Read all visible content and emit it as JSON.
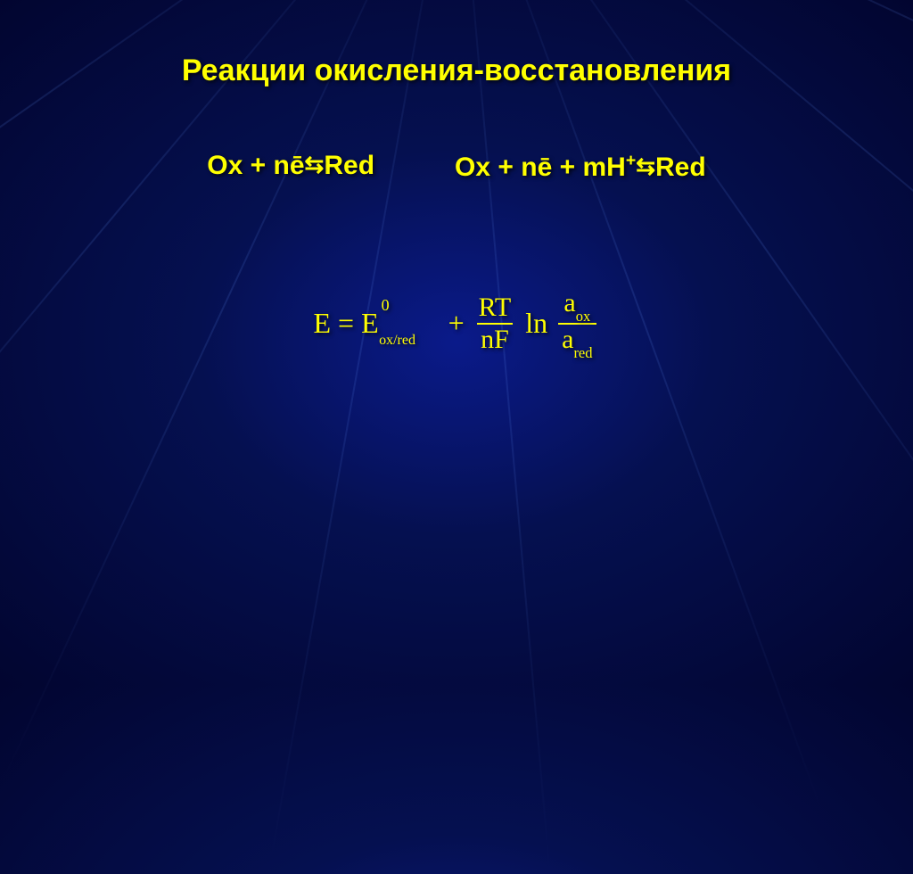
{
  "slide": {
    "title": "Реакции окисления-восстановления",
    "eq1": {
      "lhs_ox": "Ox",
      "plus1": " + ",
      "ne": "nē",
      "arrows": " ⇆ ",
      "rhs": "Red"
    },
    "eq2": {
      "lhs_ox": "Ox",
      "plus1": " + ",
      "ne": "nē",
      "plus2": " + ",
      "mh": "mH",
      "mh_sup": "+",
      "arrows": " ⇆ ",
      "rhs": "Red"
    },
    "nernst": {
      "E": "E",
      "equals1": " = ",
      "E0": "E",
      "E0_sup": "0",
      "E0_sub": "ox/red",
      "plus": " + ",
      "frac1_num": "RT",
      "frac1_den": "nF",
      "ln": " ln ",
      "frac2_num_a": "a",
      "frac2_num_sub": "ox",
      "frac2_den_a": "a",
      "frac2_den_sub": "red"
    }
  },
  "style": {
    "background_gradient_center": "#0a1a8a",
    "background_gradient_mid": "#051050",
    "background_gradient_edge": "#020530",
    "text_color": "#ffff00",
    "title_fontsize": 34,
    "equation_fontsize": 30,
    "nernst_fontsize": 32,
    "ray_color": "rgba(100,150,255,0.15)"
  }
}
